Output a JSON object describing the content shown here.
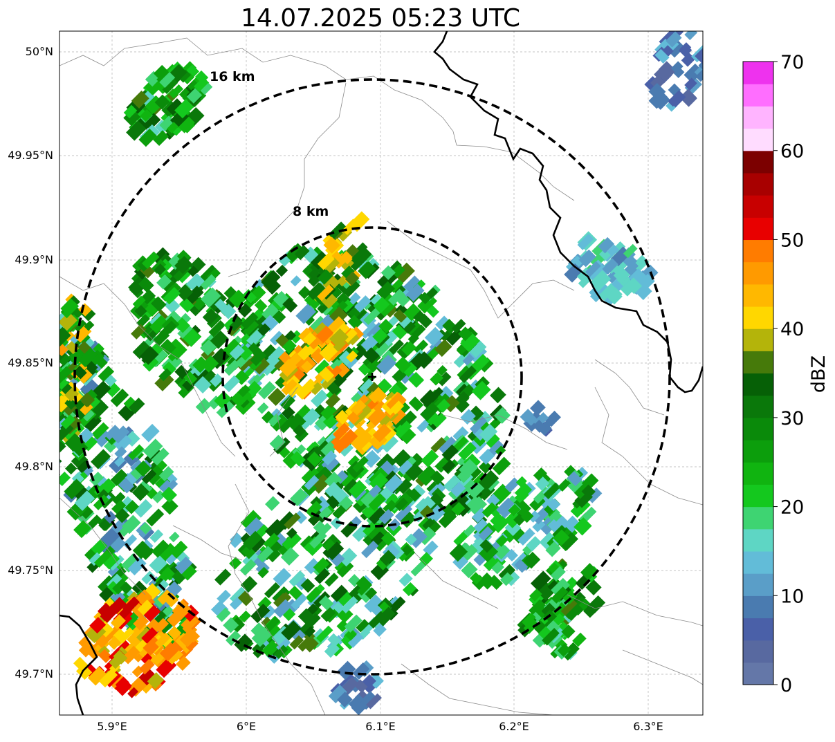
{
  "title": "14.07.2025 05:23 UTC",
  "map": {
    "lat_ticks": [
      "50°N",
      "49.95°N",
      "49.9°N",
      "49.85°N",
      "49.8°N",
      "49.75°N",
      "49.7°N"
    ],
    "lon_ticks": [
      "5.9°E",
      "6°E",
      "6.1°E",
      "6.2°E",
      "6.3°E"
    ],
    "range_rings": [
      {
        "label": "8 km",
        "radius_km": 8
      },
      {
        "label": "16 km",
        "radius_km": 16
      }
    ],
    "radar_site": {
      "lon": 6.093,
      "lat": 49.845
    }
  },
  "colorbar": {
    "label": "dBZ",
    "ticks": [
      "0",
      "10",
      "20",
      "30",
      "40",
      "50",
      "60",
      "70"
    ],
    "min": 0,
    "max": 70,
    "step": 2.5,
    "colors": [
      "#6477a8",
      "#5869a0",
      "#4a60a8",
      "#4a7bb0",
      "#5a9ec8",
      "#62bcd8",
      "#5ed6c4",
      "#3ed472",
      "#14c81e",
      "#10b410",
      "#0c9e0c",
      "#0a8a0a",
      "#0a780a",
      "#066006",
      "#467a0a",
      "#b4b40a",
      "#ffd700",
      "#ffb800",
      "#ff9a00",
      "#ff7c00",
      "#e80000",
      "#c80000",
      "#a80000",
      "#7c0000",
      "#ffdcff",
      "#ffb4ff",
      "#ff6eff",
      "#ee32ee"
    ]
  }
}
